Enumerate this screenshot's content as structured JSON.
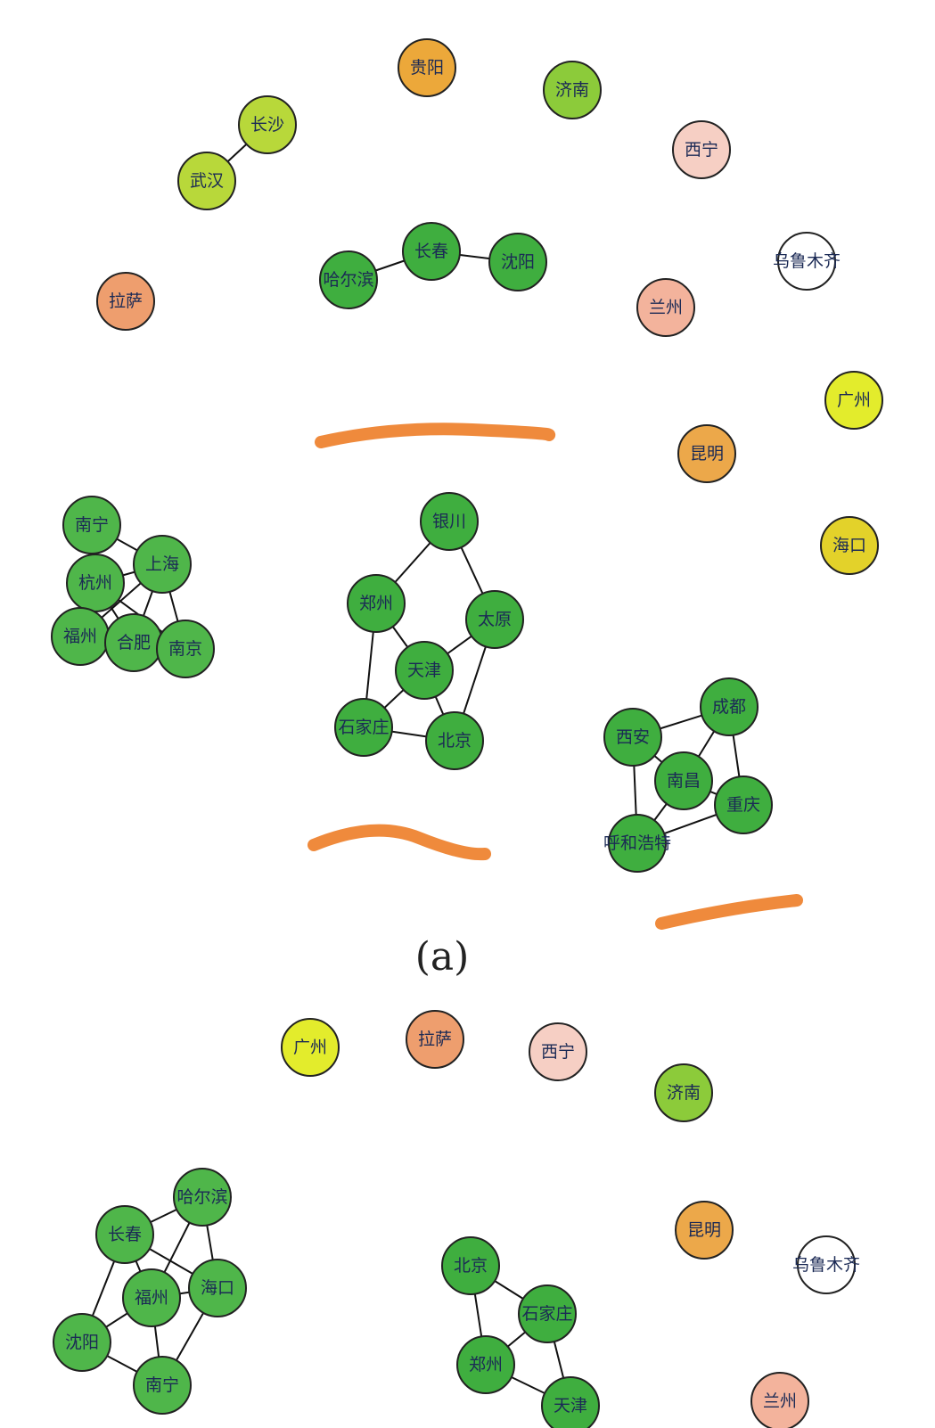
{
  "panels": [
    {
      "nodes": [
        {
          "id": "贵阳",
          "label": "贵阳",
          "color": "#eca83a"
        },
        {
          "id": "济南",
          "label": "济南",
          "color": "#8ccb3a"
        },
        {
          "id": "长沙",
          "label": "长沙",
          "color": "#b8d83a"
        },
        {
          "id": "武汉",
          "label": "武汉",
          "color": "#b8d83a"
        },
        {
          "id": "西宁",
          "label": "西宁",
          "color": "#f6cfc4"
        },
        {
          "id": "哈尔滨",
          "label": "哈尔滨",
          "color": "#3fae3f"
        },
        {
          "id": "长春",
          "label": "长春",
          "color": "#3fae3f"
        },
        {
          "id": "沈阳",
          "label": "沈阳",
          "color": "#3fae3f"
        },
        {
          "id": "乌鲁木齐",
          "label": "乌鲁木齐",
          "color": "#ffffff"
        },
        {
          "id": "拉萨",
          "label": "拉萨",
          "color": "#ee9e6e"
        },
        {
          "id": "兰州",
          "label": "兰州",
          "color": "#f3b39c"
        },
        {
          "id": "广州",
          "label": "广州",
          "color": "#e3ec2c"
        },
        {
          "id": "昆明",
          "label": "昆明",
          "color": "#eca84a"
        },
        {
          "id": "海口",
          "label": "海口",
          "color": "#e3d22a"
        },
        {
          "id": "南宁",
          "label": "南宁",
          "color": "#4fb64a"
        },
        {
          "id": "上海",
          "label": "上海",
          "color": "#4fb64a"
        },
        {
          "id": "杭州",
          "label": "杭州",
          "color": "#4fb64a"
        },
        {
          "id": "福州",
          "label": "福州",
          "color": "#4fb64a"
        },
        {
          "id": "合肥",
          "label": "合肥",
          "color": "#4fb64a"
        },
        {
          "id": "南京",
          "label": "南京",
          "color": "#4fb64a"
        },
        {
          "id": "银川",
          "label": "银川",
          "color": "#3fae3f"
        },
        {
          "id": "郑州",
          "label": "郑州",
          "color": "#3fae3f"
        },
        {
          "id": "太原",
          "label": "太原",
          "color": "#3fae3f"
        },
        {
          "id": "天津",
          "label": "天津",
          "color": "#3fae3f"
        },
        {
          "id": "石家庄",
          "label": "石家庄",
          "color": "#3fae3f"
        },
        {
          "id": "北京",
          "label": "北京",
          "color": "#3fae3f"
        },
        {
          "id": "成都",
          "label": "成都",
          "color": "#3fae3f"
        },
        {
          "id": "西安",
          "label": "西安",
          "color": "#3fae3f"
        },
        {
          "id": "南昌",
          "label": "南昌",
          "color": "#3fae3f"
        },
        {
          "id": "重庆",
          "label": "重庆",
          "color": "#3fae3f"
        },
        {
          "id": "呼和浩特",
          "label": "呼和浩特",
          "color": "#3fae3f"
        }
      ],
      "edges": [
        [
          "长沙",
          "武汉"
        ],
        [
          "哈尔滨",
          "长春"
        ],
        [
          "长春",
          "沈阳"
        ],
        [
          "南宁",
          "上海"
        ],
        [
          "南宁",
          "杭州"
        ],
        [
          "上海",
          "杭州"
        ],
        [
          "上海",
          "合肥"
        ],
        [
          "上海",
          "南京"
        ],
        [
          "杭州",
          "福州"
        ],
        [
          "杭州",
          "合肥"
        ],
        [
          "杭州",
          "南京"
        ],
        [
          "福州",
          "合肥"
        ],
        [
          "合肥",
          "南京"
        ],
        [
          "福州",
          "上海"
        ],
        [
          "银川",
          "郑州"
        ],
        [
          "银川",
          "太原"
        ],
        [
          "郑州",
          "天津"
        ],
        [
          "郑州",
          "石家庄"
        ],
        [
          "太原",
          "天津"
        ],
        [
          "太原",
          "北京"
        ],
        [
          "天津",
          "石家庄"
        ],
        [
          "天津",
          "北京"
        ],
        [
          "石家庄",
          "北京"
        ],
        [
          "西安",
          "成都"
        ],
        [
          "西安",
          "南昌"
        ],
        [
          "西安",
          "呼和浩特"
        ],
        [
          "成都",
          "南昌"
        ],
        [
          "成都",
          "重庆"
        ],
        [
          "南昌",
          "重庆"
        ],
        [
          "南昌",
          "呼和浩特"
        ],
        [
          "重庆",
          "呼和浩特"
        ]
      ]
    },
    {
      "nodes": [
        {
          "id": "广州",
          "label": "广州",
          "color": "#e3ec2c"
        },
        {
          "id": "拉萨",
          "label": "拉萨",
          "color": "#ee9e6e"
        },
        {
          "id": "西宁",
          "label": "西宁",
          "color": "#f6cfc4"
        },
        {
          "id": "济南",
          "label": "济南",
          "color": "#8ccb3a"
        },
        {
          "id": "哈尔滨",
          "label": "哈尔滨",
          "color": "#4fb64a"
        },
        {
          "id": "长春",
          "label": "长春",
          "color": "#4fb64a"
        },
        {
          "id": "福州",
          "label": "福州",
          "color": "#4fb64a"
        },
        {
          "id": "海口",
          "label": "海口",
          "color": "#4fb64a"
        },
        {
          "id": "沈阳",
          "label": "沈阳",
          "color": "#4fb64a"
        },
        {
          "id": "南宁",
          "label": "南宁",
          "color": "#4fb64a"
        },
        {
          "id": "北京",
          "label": "北京",
          "color": "#3fae3f"
        },
        {
          "id": "石家庄",
          "label": "石家庄",
          "color": "#3fae3f"
        },
        {
          "id": "郑州",
          "label": "郑州",
          "color": "#3fae3f"
        },
        {
          "id": "天津",
          "label": "天津",
          "color": "#3fae3f"
        },
        {
          "id": "昆明",
          "label": "昆明",
          "color": "#eca84a"
        },
        {
          "id": "乌鲁木齐",
          "label": "乌鲁木齐",
          "color": "#ffffff"
        },
        {
          "id": "兰州",
          "label": "兰州",
          "color": "#f3b39c"
        }
      ],
      "edges": [
        [
          "哈尔滨",
          "长春"
        ],
        [
          "哈尔滨",
          "福州"
        ],
        [
          "哈尔滨",
          "海口"
        ],
        [
          "长春",
          "福州"
        ],
        [
          "长春",
          "海口"
        ],
        [
          "长春",
          "沈阳"
        ],
        [
          "福州",
          "海口"
        ],
        [
          "福州",
          "沈阳"
        ],
        [
          "福州",
          "南宁"
        ],
        [
          "海口",
          "南宁"
        ],
        [
          "沈阳",
          "南宁"
        ],
        [
          "北京",
          "石家庄"
        ],
        [
          "北京",
          "郑州"
        ],
        [
          "石家庄",
          "郑州"
        ],
        [
          "石家庄",
          "天津"
        ],
        [
          "郑州",
          "天津"
        ]
      ]
    }
  ],
  "caption": "(a)"
}
